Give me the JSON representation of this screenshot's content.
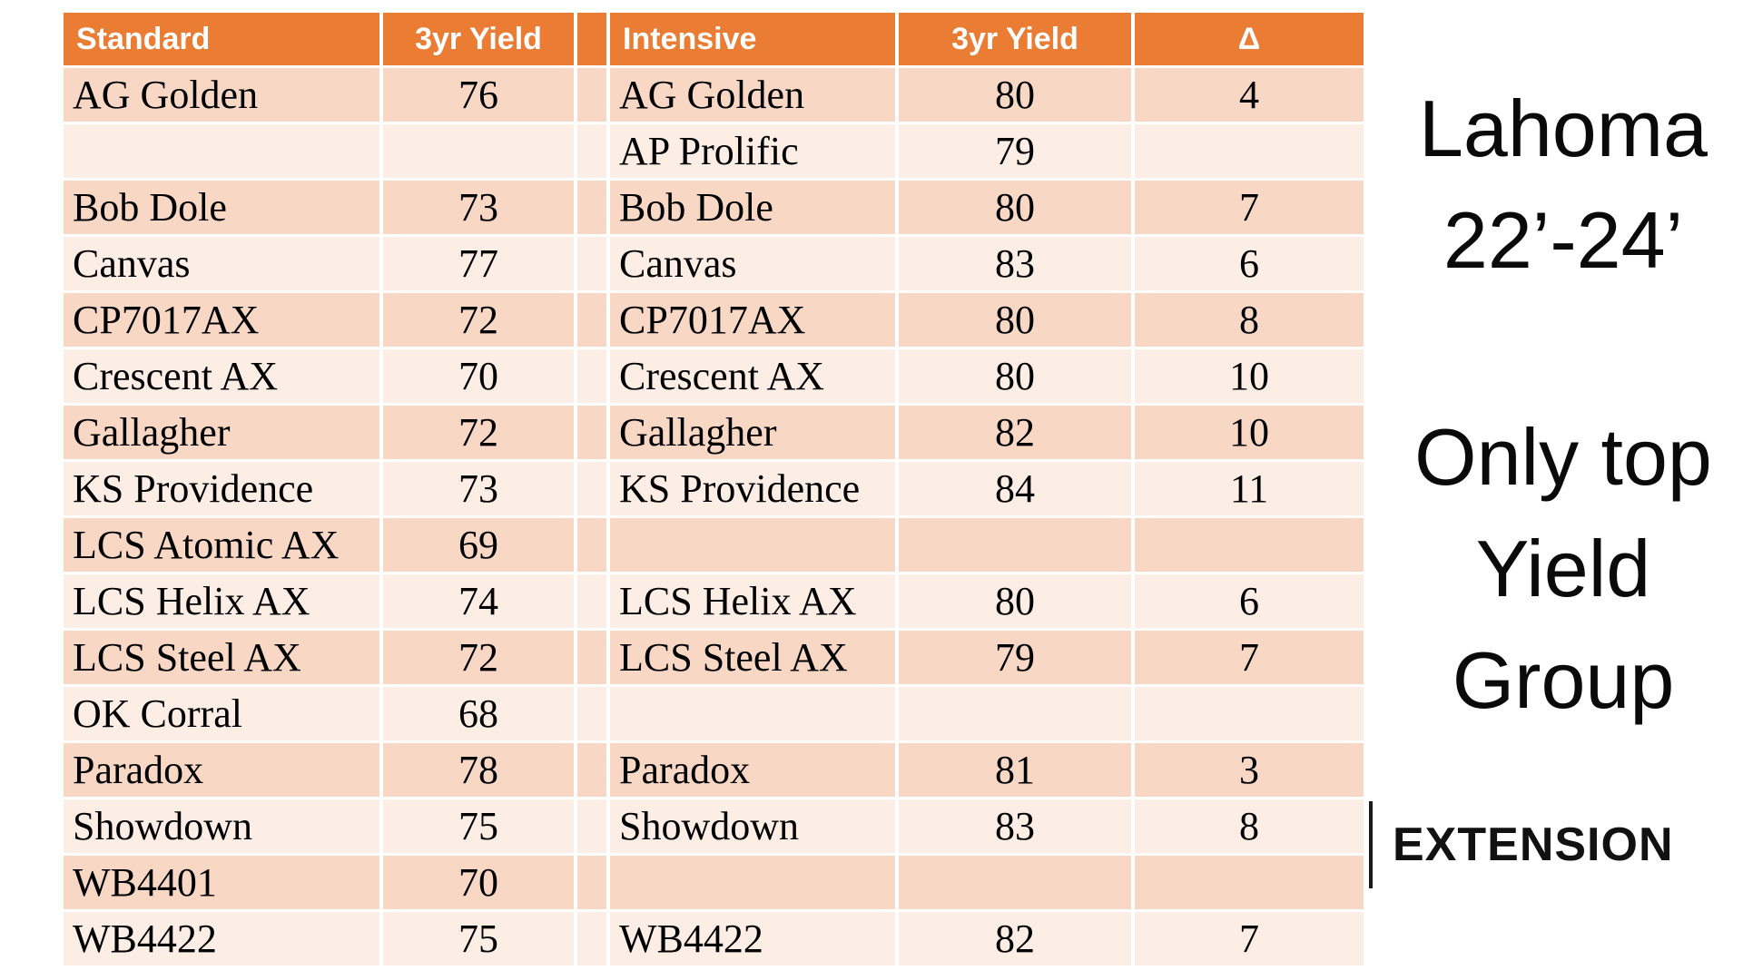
{
  "colors": {
    "header_bg": "#EA7C33",
    "row_band_dark": "#F8D7C5",
    "row_band_light": "#FCEDE5",
    "header_text": "#FFFFFF",
    "body_text": "#000000"
  },
  "side_panel": {
    "title_line1": "Lahoma",
    "title_line2": "22’-24’",
    "note_line1": "Only top",
    "note_line2": "Yield",
    "note_line3": "Group",
    "extension_label": "EXTENSION"
  },
  "table": {
    "headers": {
      "standard": "Standard",
      "standard_yield": "3yr Yield",
      "spacer": "",
      "intensive": "Intensive",
      "intensive_yield": "3yr Yield",
      "delta": "Δ"
    },
    "rows": [
      {
        "standard_name": "AG Golden",
        "standard_yield": "76",
        "intensive_name": "AG Golden",
        "intensive_yield": "80",
        "delta": "4"
      },
      {
        "standard_name": "",
        "standard_yield": "",
        "intensive_name": "AP Prolific",
        "intensive_yield": "79",
        "delta": ""
      },
      {
        "standard_name": "Bob Dole",
        "standard_yield": "73",
        "intensive_name": "Bob Dole",
        "intensive_yield": "80",
        "delta": "7"
      },
      {
        "standard_name": "Canvas",
        "standard_yield": "77",
        "intensive_name": "Canvas",
        "intensive_yield": "83",
        "delta": "6"
      },
      {
        "standard_name": "CP7017AX",
        "standard_yield": "72",
        "intensive_name": "CP7017AX",
        "intensive_yield": "80",
        "delta": "8"
      },
      {
        "standard_name": "Crescent AX",
        "standard_yield": "70",
        "intensive_name": "Crescent AX",
        "intensive_yield": "80",
        "delta": "10"
      },
      {
        "standard_name": "Gallagher",
        "standard_yield": "72",
        "intensive_name": "Gallagher",
        "intensive_yield": "82",
        "delta": "10"
      },
      {
        "standard_name": "KS Providence",
        "standard_yield": "73",
        "intensive_name": "KS Providence",
        "intensive_yield": "84",
        "delta": "11"
      },
      {
        "standard_name": "LCS Atomic AX",
        "standard_yield": "69",
        "intensive_name": "",
        "intensive_yield": "",
        "delta": ""
      },
      {
        "standard_name": "LCS Helix AX",
        "standard_yield": "74",
        "intensive_name": "LCS Helix AX",
        "intensive_yield": "80",
        "delta": "6"
      },
      {
        "standard_name": "LCS Steel AX",
        "standard_yield": "72",
        "intensive_name": "LCS Steel AX",
        "intensive_yield": "79",
        "delta": "7"
      },
      {
        "standard_name": "OK Corral",
        "standard_yield": "68",
        "intensive_name": "",
        "intensive_yield": "",
        "delta": ""
      },
      {
        "standard_name": "Paradox",
        "standard_yield": "78",
        "intensive_name": "Paradox",
        "intensive_yield": "81",
        "delta": "3"
      },
      {
        "standard_name": "Showdown",
        "standard_yield": "75",
        "intensive_name": "Showdown",
        "intensive_yield": "83",
        "delta": "8"
      },
      {
        "standard_name": "WB4401",
        "standard_yield": "70",
        "intensive_name": "",
        "intensive_yield": "",
        "delta": ""
      },
      {
        "standard_name": "WB4422",
        "standard_yield": "75",
        "intensive_name": "WB4422",
        "intensive_yield": "82",
        "delta": "7"
      }
    ]
  },
  "chart_data": {
    "type": "table",
    "title": "Lahoma 22’-24’",
    "subtitle": "Only top Yield Group",
    "columns": [
      "Standard",
      "3yr Yield",
      "Intensive",
      "3yr Yield",
      "Δ"
    ],
    "rows": [
      [
        "AG Golden",
        76,
        "AG Golden",
        80,
        4
      ],
      [
        null,
        null,
        "AP Prolific",
        79,
        null
      ],
      [
        "Bob Dole",
        73,
        "Bob Dole",
        80,
        7
      ],
      [
        "Canvas",
        77,
        "Canvas",
        83,
        6
      ],
      [
        "CP7017AX",
        72,
        "CP7017AX",
        80,
        8
      ],
      [
        "Crescent AX",
        70,
        "Crescent AX",
        80,
        10
      ],
      [
        "Gallagher",
        72,
        "Gallagher",
        82,
        10
      ],
      [
        "KS Providence",
        73,
        "KS Providence",
        84,
        11
      ],
      [
        "LCS Atomic AX",
        69,
        null,
        null,
        null
      ],
      [
        "LCS Helix AX",
        74,
        "LCS Helix AX",
        80,
        6
      ],
      [
        "LCS Steel AX",
        72,
        "LCS Steel AX",
        79,
        7
      ],
      [
        "OK Corral",
        68,
        null,
        null,
        null
      ],
      [
        "Paradox",
        78,
        "Paradox",
        81,
        3
      ],
      [
        "Showdown",
        75,
        "Showdown",
        83,
        8
      ],
      [
        "WB4401",
        70,
        null,
        null,
        null
      ],
      [
        "WB4422",
        75,
        "WB4422",
        82,
        7
      ]
    ]
  }
}
